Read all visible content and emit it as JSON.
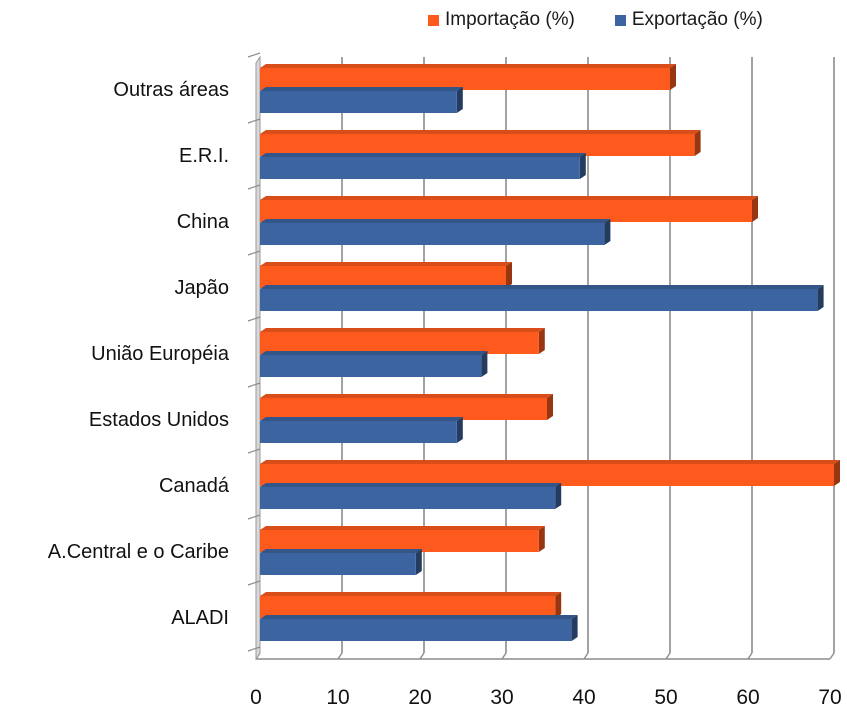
{
  "chart_data": {
    "type": "bar",
    "orientation": "horizontal",
    "categories": [
      "Outras áreas",
      "E.R.I.",
      "China",
      "Japão",
      "União Européia",
      "Estados Unidos",
      "Canadá",
      "A.Central e o Caribe",
      "ALADI"
    ],
    "series": [
      {
        "name": "Importação (%)",
        "color": "#FF5A1E",
        "values": [
          50,
          53,
          60,
          30,
          34,
          35,
          70,
          34,
          36
        ]
      },
      {
        "name": "Exportação (%)",
        "color": "#3C64A0",
        "values": [
          24,
          39,
          42,
          68,
          27,
          24,
          36,
          19,
          38
        ]
      }
    ],
    "xticks": [
      "0",
      "10",
      "20",
      "30",
      "40",
      "50",
      "60",
      "70"
    ],
    "xlim": [
      0,
      70
    ],
    "grid": true,
    "legend_position": "top-right"
  }
}
